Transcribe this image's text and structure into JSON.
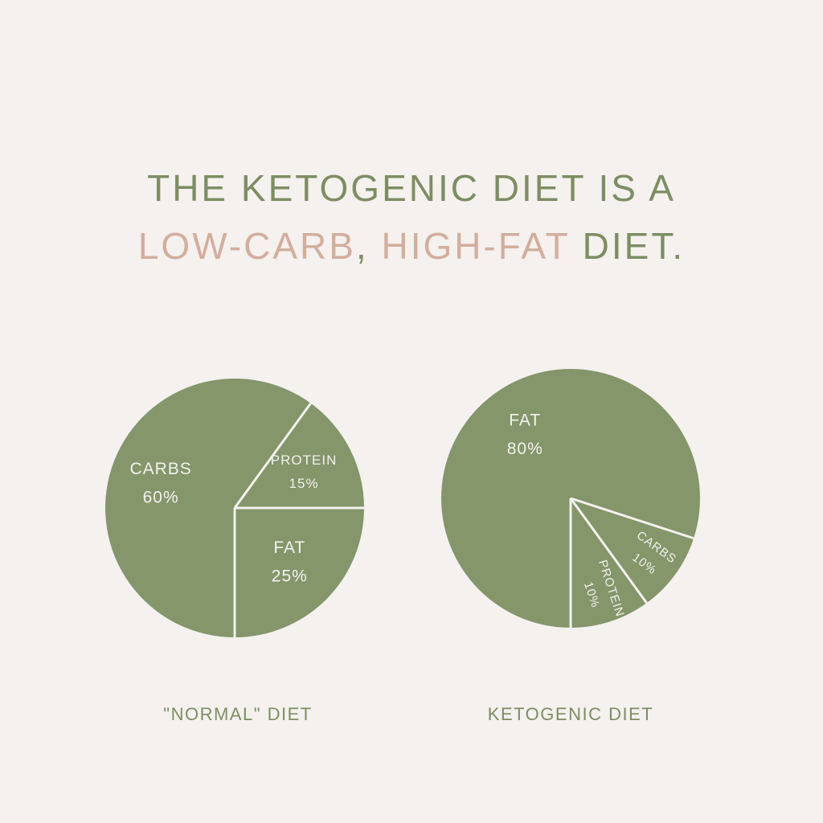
{
  "header": {
    "title_line1": "THE KETOGENIC DIET IS A",
    "title_line2_parts": [
      "LOW-CARB",
      ", ",
      "HIGH-FAT",
      " DIET."
    ]
  },
  "chart_data": [
    {
      "type": "pie",
      "title": "\"NORMAL\" DIET",
      "categories": [
        "CARBS",
        "PROTEIN",
        "FAT"
      ],
      "values": [
        60,
        15,
        25
      ],
      "value_labels": [
        "60%",
        "15%",
        "25%"
      ],
      "color": "#84966a"
    },
    {
      "type": "pie",
      "title": "KETOGENIC DIET",
      "categories": [
        "FAT",
        "CARBS",
        "PROTEIN"
      ],
      "values": [
        80,
        10,
        10
      ],
      "value_labels": [
        "80%",
        "10%",
        "10%"
      ],
      "color": "#84966a"
    }
  ]
}
